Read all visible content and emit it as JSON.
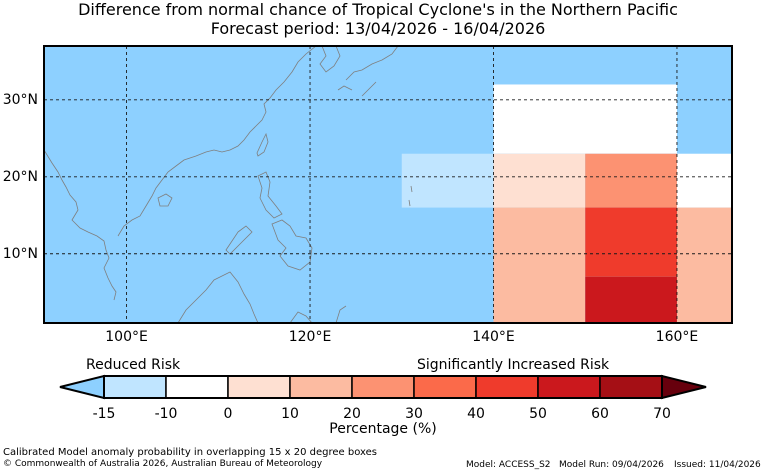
{
  "title_line1": "Difference from normal chance of Tropical Cyclone's in the Northern Pacific",
  "title_line2": "Forecast period: 13/04/2026 - 16/04/2026",
  "map": {
    "lon_range": [
      91,
      166
    ],
    "lat_range": [
      1,
      37
    ],
    "lon_ticks": [
      "100°E",
      "120°E",
      "140°E",
      "160°E"
    ],
    "lat_ticks": [
      "30°N",
      "20°N",
      "10°N"
    ],
    "colors": {
      "ocean": "#8dd0ff",
      "coast": "#7f7f7f",
      "grid": "#1a1a1a"
    }
  },
  "legend": {
    "left_label": "Reduced Risk",
    "right_label": "Significantly Increased Risk",
    "ticks": [
      "-15",
      "-10",
      "0",
      "10",
      "20",
      "30",
      "40",
      "50",
      "60",
      "70"
    ],
    "bins": [
      {
        "from": -15,
        "to": -10,
        "color": "#c0e5ff"
      },
      {
        "from": -10,
        "to": 0,
        "color": "#ffffff"
      },
      {
        "from": 0,
        "to": 10,
        "color": "#fee0d2"
      },
      {
        "from": 10,
        "to": 20,
        "color": "#fcbba1"
      },
      {
        "from": 20,
        "to": 30,
        "color": "#fc9272"
      },
      {
        "from": 30,
        "to": 40,
        "color": "#fb6a4a"
      },
      {
        "from": 40,
        "to": 50,
        "color": "#ef3b2c"
      },
      {
        "from": 50,
        "to": 60,
        "color": "#cb181d"
      },
      {
        "from": 60,
        "to": 70,
        "color": "#a50f15"
      }
    ],
    "under_color": "#8dd0ff",
    "over_color": "#67000d",
    "axis_label": "Percentage (%)"
  },
  "chart_data": {
    "type": "heatmap",
    "x_unit": "degrees east longitude",
    "y_unit": "degrees north latitude",
    "cells": [
      {
        "lon": [
          140,
          160
        ],
        "lat": [
          23,
          32
        ],
        "value": -5,
        "color": "#ffffff"
      },
      {
        "lon": [
          130,
          140
        ],
        "lat": [
          16,
          23
        ],
        "value": -12,
        "color": "#c0e5ff"
      },
      {
        "lon": [
          140,
          150
        ],
        "lat": [
          16,
          23
        ],
        "value": 5,
        "color": "#fee0d2"
      },
      {
        "lon": [
          150,
          160
        ],
        "lat": [
          16,
          23
        ],
        "value": 25,
        "color": "#fc9272"
      },
      {
        "lon": [
          160,
          170
        ],
        "lat": [
          16,
          23
        ],
        "value": -5,
        "color": "#ffffff"
      },
      {
        "lon": [
          140,
          150
        ],
        "lat": [
          1,
          16
        ],
        "value": 15,
        "color": "#fcbba1"
      },
      {
        "lon": [
          150,
          160
        ],
        "lat": [
          7,
          16
        ],
        "value": 45,
        "color": "#ef3b2c"
      },
      {
        "lon": [
          150,
          160
        ],
        "lat": [
          1,
          7
        ],
        "value": 55,
        "color": "#cb181d"
      },
      {
        "lon": [
          160,
          170
        ],
        "lat": [
          1,
          16
        ],
        "value": 15,
        "color": "#fcbba1"
      }
    ]
  },
  "footer": {
    "note": "Calibrated Model anomaly probability in overlapping 15 x 20 degree boxes",
    "copyright": "© Commonwealth of Australia 2026, Australian Bureau of Meteorology",
    "model": "Model: ACCESS_S2",
    "model_run": "Model Run: 09/04/2026",
    "issued": "Issued: 11/04/2026"
  }
}
